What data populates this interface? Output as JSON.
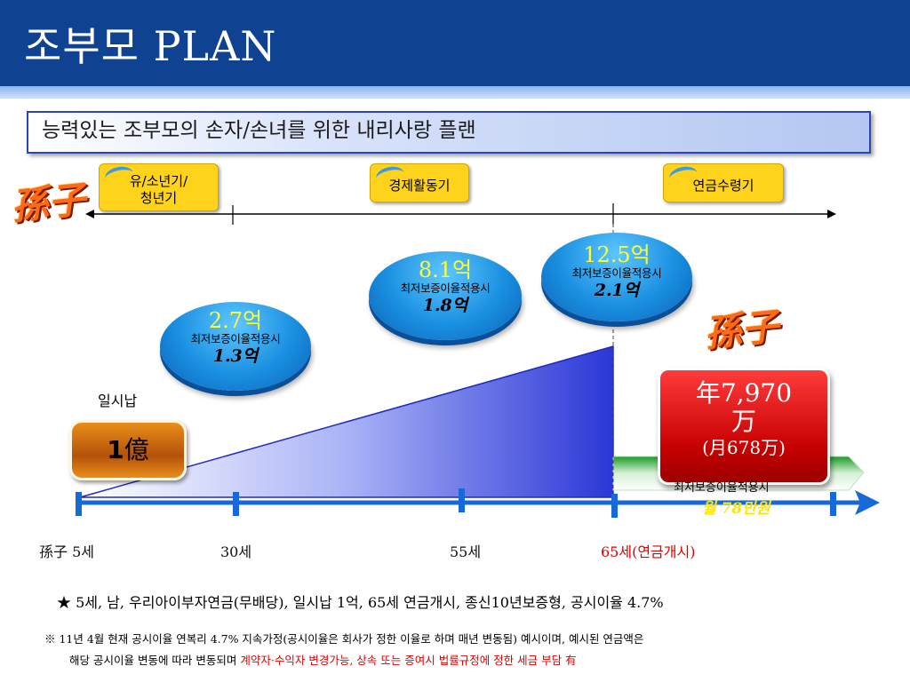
{
  "header": {
    "title": "조부모 PLAN"
  },
  "subtitle": "능력있는 조부모의 손자/손녀를 위한 내리사랑 플랜",
  "labels": {
    "grandchild": "孫子"
  },
  "stages": [
    {
      "label_line1": "유/소년기/",
      "label_line2": "청년기"
    },
    {
      "label": "경제활동기"
    },
    {
      "label": "연금수령기"
    }
  ],
  "lump_sum": {
    "caption": "일시납",
    "amount_num": "1",
    "amount_unit": "億"
  },
  "bubbles": [
    {
      "headline": "2.7억",
      "caption": "최저보증이율적용시",
      "value": "1.3억"
    },
    {
      "headline": "8.1억",
      "caption": "최저보증이율적용시",
      "value": "1.8억"
    },
    {
      "headline": "12.5억",
      "caption": "최저보증이율적용시",
      "value": "2.1억"
    }
  ],
  "annuity": {
    "line1": "年7,970",
    "line2": "万",
    "line3": "(月678万)",
    "caption": "최저보증이율적용시",
    "value": "월 78만원"
  },
  "ages": [
    "孫子 5세",
    "30세",
    "55세",
    "65세(연금개시)"
  ],
  "notes": {
    "main": "★ 5세, 남, 우리아이부자연금(무배당), 일시납 1억, 65세 연금개시, 종신10년보증형, 공시이율 4.7%",
    "disclaimer_line1": "※ 11년 4월 현재 공시이율 연복리 4.7% 지속가정(공시이율은 회사가 정한 이율로 하며 매년 변동됨) 예시이며,  예시된 연금액은",
    "disclaimer_line2": "해당 공시이율 변동에 따라 변동되며",
    "disclaimer_red": "계약자·수익자 변경가능, 상속 또는 증여시 법률규정에 정한 세금 부담 有"
  },
  "colors": {
    "header": "#0f4290",
    "timeline": "#1769d8",
    "stage": "#ffd21c",
    "bubble": "#1a8fe0",
    "annuity": "#c60000",
    "accent_text": "#e00000"
  }
}
